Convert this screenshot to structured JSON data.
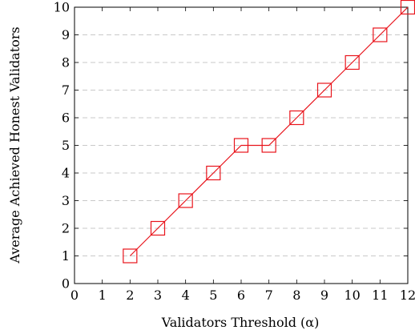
{
  "chart_data": {
    "type": "line",
    "title": "",
    "xlabel": "Validators Threshold (α)",
    "ylabel": "Average Achieved Honest Validators",
    "xlim": [
      0,
      12
    ],
    "ylim": [
      0,
      10
    ],
    "xticks": [
      0,
      1,
      2,
      3,
      4,
      5,
      6,
      7,
      8,
      9,
      10,
      11,
      12
    ],
    "yticks": [
      0,
      1,
      2,
      3,
      4,
      5,
      6,
      7,
      8,
      9,
      10
    ],
    "grid": "horizontal dashed",
    "legend": "none",
    "series": [
      {
        "color": "#e8141c",
        "marker": "square",
        "x": [
          2,
          3,
          4,
          5,
          6,
          7,
          8,
          9,
          10,
          11,
          12
        ],
        "y": [
          1,
          2,
          3,
          4,
          5,
          5,
          6,
          7,
          8,
          9,
          10
        ]
      }
    ]
  }
}
